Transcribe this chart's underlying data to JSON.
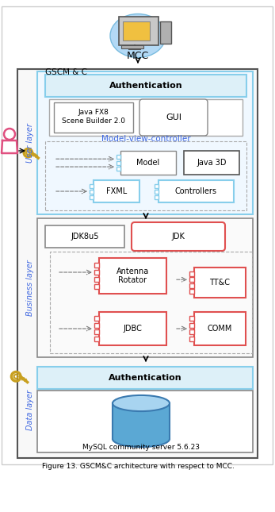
{
  "title": "MCC",
  "caption": "Figure 13. GSCM&C architecture with respect to MCC.",
  "gscm_label": "GSCM & C",
  "user_layer_label": "User layer",
  "business_layer_label": "Business layer",
  "data_layer_label": "Data layer",
  "auth_label": "Authentication",
  "mvc_label": "Model-view-controller",
  "javafx_label": "Java FX8\nScene Builder 2.0",
  "gui_label": "GUI",
  "model_label": "Model",
  "java3d_label": "Java 3D",
  "fxml_label": "FXML",
  "controllers_label": "Controllers",
  "jdk8_label": "JDK8u5",
  "jdk_label": "JDK",
  "antenna_label": "Antenna\nRotator",
  "ttc_label": "TT&C",
  "jdbc_label": "JDBC",
  "comm_label": "COMM",
  "mysql_label": "MySQL community server 5.6.23",
  "blue_light": "#87ceeb",
  "blue_mid": "#4169e1",
  "red_col": "#e05050",
  "gray_col": "#888888",
  "key_col": "#c8a020",
  "person_col": "#e05080",
  "cyan_bg": "#b3d9f5"
}
